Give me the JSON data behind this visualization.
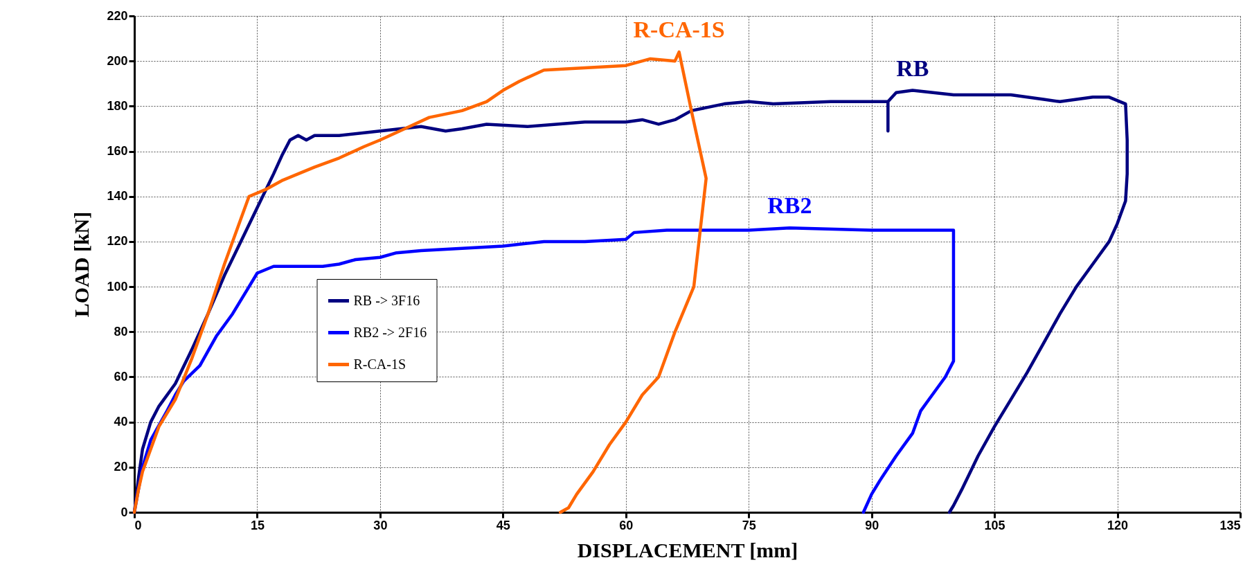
{
  "chart_data": {
    "type": "line",
    "xlabel": "DISPLACEMENT  [mm]",
    "ylabel": "LOAD  [kN]",
    "xlim": [
      0,
      135
    ],
    "xticks": [
      0,
      15,
      30,
      45,
      60,
      75,
      90,
      105,
      120,
      135
    ],
    "ylim": [
      0,
      220
    ],
    "yticks": [
      0,
      20,
      40,
      60,
      80,
      100,
      120,
      140,
      160,
      180,
      200,
      220
    ],
    "grid": true,
    "legend": "left",
    "line_style": "solid",
    "marker": "none",
    "annotations": [
      "RB",
      "RB2",
      "R-CA-1S"
    ],
    "series": [
      {
        "name": "RB -> 3F16",
        "color": "#000080",
        "x": [
          0,
          0.5,
          1,
          2,
          3,
          5,
          7,
          9,
          11,
          13,
          15,
          17,
          18,
          19,
          20,
          21,
          22,
          25,
          30,
          35,
          38,
          40,
          43,
          48,
          55,
          60,
          62,
          64,
          66,
          68,
          72,
          75,
          78,
          85,
          92,
          92,
          92,
          93,
          95,
          100,
          107,
          111,
          113,
          117,
          119,
          121,
          121.2,
          121.2,
          121,
          120,
          119,
          117,
          115,
          113,
          111,
          109,
          107,
          105,
          103,
          101,
          100,
          99.5
        ],
        "values": [
          0,
          15,
          28,
          40,
          47,
          57,
          72,
          88,
          105,
          120,
          135,
          150,
          158,
          165,
          167,
          165,
          167,
          167,
          169,
          171,
          169,
          170,
          172,
          171,
          173,
          173,
          174,
          172,
          174,
          178,
          181,
          182,
          181,
          182,
          182,
          169,
          182,
          186,
          187,
          185,
          185,
          183,
          182,
          184,
          184,
          181,
          165,
          150,
          138,
          128,
          120,
          110,
          100,
          88,
          75,
          62,
          50,
          38,
          25,
          10,
          3,
          0
        ]
      },
      {
        "name": "RB2 -> 2F16",
        "color": "#0000ff",
        "x": [
          0,
          0.5,
          1,
          2,
          4,
          5,
          6,
          8,
          10,
          12,
          14,
          15,
          17,
          20,
          23,
          25,
          27,
          30,
          32,
          35,
          40,
          45,
          50,
          55,
          60,
          61,
          65,
          75,
          80,
          90,
          100,
          100,
          100,
          99,
          97,
          96,
          95,
          93,
          91,
          90,
          89
        ],
        "values": [
          0,
          10,
          20,
          32,
          45,
          52,
          58,
          65,
          78,
          88,
          100,
          106,
          109,
          109,
          109,
          110,
          112,
          113,
          115,
          116,
          117,
          118,
          120,
          120,
          121,
          124,
          125,
          125,
          126,
          125,
          125,
          100,
          67,
          60,
          50,
          45,
          35,
          25,
          14,
          8,
          0
        ]
      },
      {
        "name": "R-CA-1S",
        "color": "#ff6600",
        "x": [
          0,
          0.5,
          1,
          2,
          3,
          5,
          7,
          9,
          11,
          13,
          14,
          16,
          18,
          20,
          22,
          25,
          28,
          30,
          33,
          36,
          40,
          43,
          45,
          47,
          50,
          55,
          60,
          63,
          66,
          66.5,
          68,
          69.8,
          68.3,
          66,
          64,
          62,
          60,
          58,
          56,
          54,
          53,
          52
        ],
        "values": [
          0,
          10,
          18,
          28,
          38,
          50,
          68,
          88,
          110,
          130,
          140,
          143,
          147,
          150,
          153,
          157,
          162,
          165,
          170,
          175,
          178,
          182,
          187,
          191,
          196,
          197,
          198,
          201,
          200,
          204,
          178,
          148,
          100,
          80,
          60,
          52,
          40,
          30,
          18,
          8,
          2,
          0
        ]
      }
    ]
  }
}
